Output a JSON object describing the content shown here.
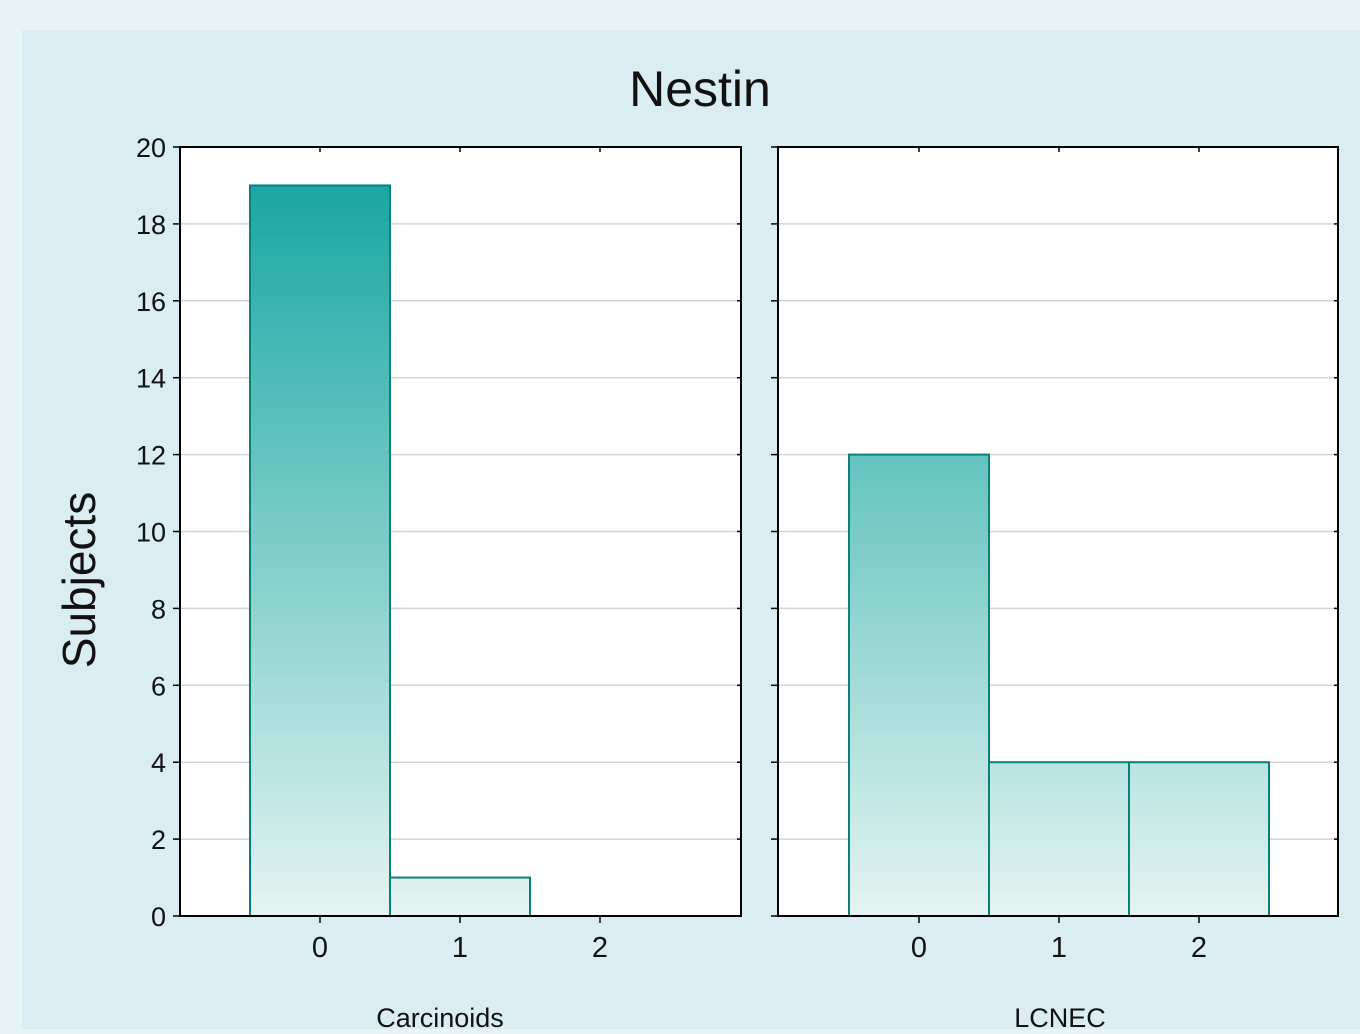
{
  "chart_data": {
    "type": "bar",
    "title": "Nestin",
    "ylabel": "Subjects",
    "ylim": [
      0,
      20
    ],
    "yticks": [
      0,
      2,
      4,
      6,
      8,
      10,
      12,
      14,
      16,
      18,
      20
    ],
    "grid": true,
    "colors": {
      "bar_top": "#0ea39e",
      "bar_bottom": "#e4f4f2",
      "bar_edge": "#0b7f7a"
    },
    "panels": [
      {
        "xlabel": "Carcinoids",
        "categories": [
          "0",
          "1",
          "2"
        ],
        "values": [
          19,
          1,
          0
        ]
      },
      {
        "xlabel": "LCNEC",
        "categories": [
          "0",
          "1",
          "2"
        ],
        "values": [
          12,
          4,
          4
        ]
      }
    ]
  }
}
